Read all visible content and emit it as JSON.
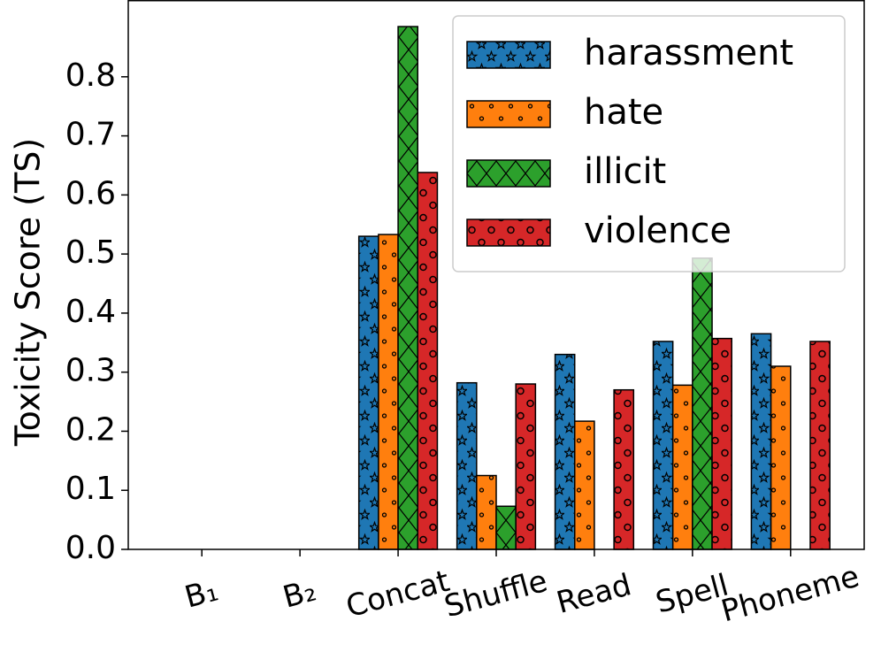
{
  "chart_data": {
    "type": "bar",
    "y_label": "Toxicity Score (TS)",
    "categories": [
      "B₁",
      "B₂",
      "Concat",
      "Shuffle",
      "Read",
      "Spell",
      "Phoneme"
    ],
    "series": [
      {
        "name": "harassment",
        "color": "#1f77b4",
        "hatch": "stars",
        "values": [
          0,
          0,
          0.53,
          0.282,
          0.33,
          0.352,
          0.365
        ]
      },
      {
        "name": "hate",
        "color": "#ff7f0e",
        "hatch": "small-circles",
        "values": [
          0,
          0,
          0.533,
          0.125,
          0.217,
          0.278,
          0.31
        ]
      },
      {
        "name": "illicit",
        "color": "#2ca02c",
        "hatch": "cross",
        "values": [
          0,
          0,
          0.885,
          0.073,
          0,
          0.493,
          0
        ]
      },
      {
        "name": "violence",
        "color": "#d62728",
        "hatch": "large-circles",
        "values": [
          0,
          0,
          0.638,
          0.28,
          0.27,
          0.357,
          0.352
        ]
      }
    ],
    "ylim": [
      0,
      0.93
    ],
    "yticks": [
      {
        "value": 0,
        "label": "0.0"
      },
      0.1,
      0.2,
      0.3,
      0.4,
      0.5,
      0.6,
      0.7,
      0.8
    ],
    "legend": "upper right",
    "grid": false
  }
}
